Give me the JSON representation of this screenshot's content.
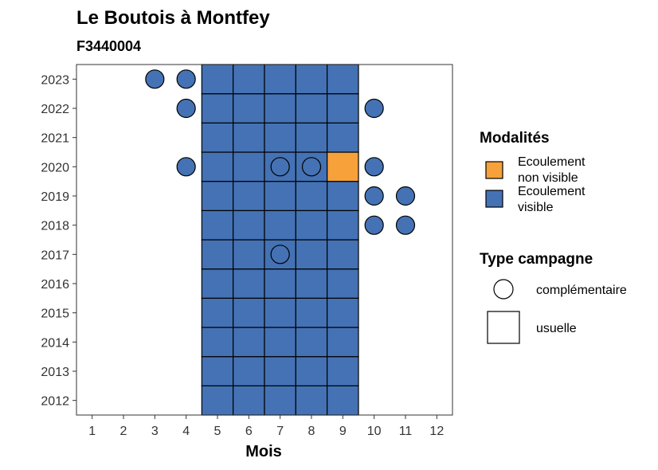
{
  "chart_data": {
    "type": "heatmap",
    "title": "Le Boutois à Montfey",
    "subtitle": "F3440004",
    "xlabel": "Mois",
    "ylabel": "",
    "x_ticks": [
      "1",
      "2",
      "3",
      "4",
      "5",
      "6",
      "7",
      "8",
      "9",
      "10",
      "11",
      "12"
    ],
    "y_ticks": [
      "2012",
      "2013",
      "2014",
      "2015",
      "2016",
      "2017",
      "2018",
      "2019",
      "2020",
      "2021",
      "2022",
      "2023"
    ],
    "xlim": [
      0.5,
      12.5
    ],
    "ylim": [
      2011.5,
      2023.5
    ],
    "grid": false,
    "colors": {
      "Ecoulement visible": "#4472b4",
      "Ecoulement non visible": "#f7a13a"
    },
    "tiles_usuelle": [
      {
        "year": 2012,
        "month": 5,
        "modalite": "Ecoulement visible"
      },
      {
        "year": 2012,
        "month": 6,
        "modalite": "Ecoulement visible"
      },
      {
        "year": 2012,
        "month": 7,
        "modalite": "Ecoulement visible"
      },
      {
        "year": 2012,
        "month": 8,
        "modalite": "Ecoulement visible"
      },
      {
        "year": 2012,
        "month": 9,
        "modalite": "Ecoulement visible"
      },
      {
        "year": 2013,
        "month": 5,
        "modalite": "Ecoulement visible"
      },
      {
        "year": 2013,
        "month": 6,
        "modalite": "Ecoulement visible"
      },
      {
        "year": 2013,
        "month": 7,
        "modalite": "Ecoulement visible"
      },
      {
        "year": 2013,
        "month": 8,
        "modalite": "Ecoulement visible"
      },
      {
        "year": 2013,
        "month": 9,
        "modalite": "Ecoulement visible"
      },
      {
        "year": 2014,
        "month": 5,
        "modalite": "Ecoulement visible"
      },
      {
        "year": 2014,
        "month": 6,
        "modalite": "Ecoulement visible"
      },
      {
        "year": 2014,
        "month": 7,
        "modalite": "Ecoulement visible"
      },
      {
        "year": 2014,
        "month": 8,
        "modalite": "Ecoulement visible"
      },
      {
        "year": 2014,
        "month": 9,
        "modalite": "Ecoulement visible"
      },
      {
        "year": 2015,
        "month": 5,
        "modalite": "Ecoulement visible"
      },
      {
        "year": 2015,
        "month": 6,
        "modalite": "Ecoulement visible"
      },
      {
        "year": 2015,
        "month": 7,
        "modalite": "Ecoulement visible"
      },
      {
        "year": 2015,
        "month": 8,
        "modalite": "Ecoulement visible"
      },
      {
        "year": 2015,
        "month": 9,
        "modalite": "Ecoulement visible"
      },
      {
        "year": 2016,
        "month": 5,
        "modalite": "Ecoulement visible"
      },
      {
        "year": 2016,
        "month": 6,
        "modalite": "Ecoulement visible"
      },
      {
        "year": 2016,
        "month": 7,
        "modalite": "Ecoulement visible"
      },
      {
        "year": 2016,
        "month": 8,
        "modalite": "Ecoulement visible"
      },
      {
        "year": 2016,
        "month": 9,
        "modalite": "Ecoulement visible"
      },
      {
        "year": 2017,
        "month": 5,
        "modalite": "Ecoulement visible"
      },
      {
        "year": 2017,
        "month": 6,
        "modalite": "Ecoulement visible"
      },
      {
        "year": 2017,
        "month": 7,
        "modalite": "Ecoulement visible"
      },
      {
        "year": 2017,
        "month": 8,
        "modalite": "Ecoulement visible"
      },
      {
        "year": 2017,
        "month": 9,
        "modalite": "Ecoulement visible"
      },
      {
        "year": 2018,
        "month": 5,
        "modalite": "Ecoulement visible"
      },
      {
        "year": 2018,
        "month": 6,
        "modalite": "Ecoulement visible"
      },
      {
        "year": 2018,
        "month": 7,
        "modalite": "Ecoulement visible"
      },
      {
        "year": 2018,
        "month": 8,
        "modalite": "Ecoulement visible"
      },
      {
        "year": 2018,
        "month": 9,
        "modalite": "Ecoulement visible"
      },
      {
        "year": 2019,
        "month": 5,
        "modalite": "Ecoulement visible"
      },
      {
        "year": 2019,
        "month": 6,
        "modalite": "Ecoulement visible"
      },
      {
        "year": 2019,
        "month": 7,
        "modalite": "Ecoulement visible"
      },
      {
        "year": 2019,
        "month": 8,
        "modalite": "Ecoulement visible"
      },
      {
        "year": 2019,
        "month": 9,
        "modalite": "Ecoulement visible"
      },
      {
        "year": 2020,
        "month": 5,
        "modalite": "Ecoulement visible"
      },
      {
        "year": 2020,
        "month": 6,
        "modalite": "Ecoulement visible"
      },
      {
        "year": 2020,
        "month": 7,
        "modalite": "Ecoulement visible"
      },
      {
        "year": 2020,
        "month": 8,
        "modalite": "Ecoulement visible"
      },
      {
        "year": 2020,
        "month": 9,
        "modalite": "Ecoulement non visible"
      },
      {
        "year": 2021,
        "month": 5,
        "modalite": "Ecoulement visible"
      },
      {
        "year": 2021,
        "month": 6,
        "modalite": "Ecoulement visible"
      },
      {
        "year": 2021,
        "month": 7,
        "modalite": "Ecoulement visible"
      },
      {
        "year": 2021,
        "month": 8,
        "modalite": "Ecoulement visible"
      },
      {
        "year": 2021,
        "month": 9,
        "modalite": "Ecoulement visible"
      },
      {
        "year": 2022,
        "month": 5,
        "modalite": "Ecoulement visible"
      },
      {
        "year": 2022,
        "month": 6,
        "modalite": "Ecoulement visible"
      },
      {
        "year": 2022,
        "month": 7,
        "modalite": "Ecoulement visible"
      },
      {
        "year": 2022,
        "month": 8,
        "modalite": "Ecoulement visible"
      },
      {
        "year": 2022,
        "month": 9,
        "modalite": "Ecoulement visible"
      },
      {
        "year": 2023,
        "month": 5,
        "modalite": "Ecoulement visible"
      },
      {
        "year": 2023,
        "month": 6,
        "modalite": "Ecoulement visible"
      },
      {
        "year": 2023,
        "month": 7,
        "modalite": "Ecoulement visible"
      },
      {
        "year": 2023,
        "month": 8,
        "modalite": "Ecoulement visible"
      },
      {
        "year": 2023,
        "month": 9,
        "modalite": "Ecoulement visible"
      }
    ],
    "points_complementaire": [
      {
        "year": 2023,
        "month": 3,
        "modalite": "Ecoulement visible"
      },
      {
        "year": 2023,
        "month": 4,
        "modalite": "Ecoulement visible"
      },
      {
        "year": 2022,
        "month": 4,
        "modalite": "Ecoulement visible"
      },
      {
        "year": 2022,
        "month": 10,
        "modalite": "Ecoulement visible"
      },
      {
        "year": 2020,
        "month": 4,
        "modalite": "Ecoulement visible"
      },
      {
        "year": 2020,
        "month": 7,
        "modalite": "Ecoulement visible"
      },
      {
        "year": 2020,
        "month": 8,
        "modalite": "Ecoulement visible"
      },
      {
        "year": 2020,
        "month": 10,
        "modalite": "Ecoulement visible"
      },
      {
        "year": 2019,
        "month": 10,
        "modalite": "Ecoulement visible"
      },
      {
        "year": 2019,
        "month": 11,
        "modalite": "Ecoulement visible"
      },
      {
        "year": 2018,
        "month": 10,
        "modalite": "Ecoulement visible"
      },
      {
        "year": 2018,
        "month": 11,
        "modalite": "Ecoulement visible"
      },
      {
        "year": 2017,
        "month": 7,
        "modalite": "Ecoulement visible"
      }
    ],
    "legend": {
      "modalites_title": "Modalités",
      "modalites": [
        {
          "label_line1": "Ecoulement",
          "label_line2": "non visible",
          "color": "#f7a13a"
        },
        {
          "label_line1": "Ecoulement",
          "label_line2": "visible",
          "color": "#4472b4"
        }
      ],
      "campagne_title": "Type campagne",
      "campagne": [
        {
          "label": "complémentaire",
          "shape": "circle"
        },
        {
          "label": "usuelle",
          "shape": "square"
        }
      ],
      "placement": "right"
    }
  }
}
